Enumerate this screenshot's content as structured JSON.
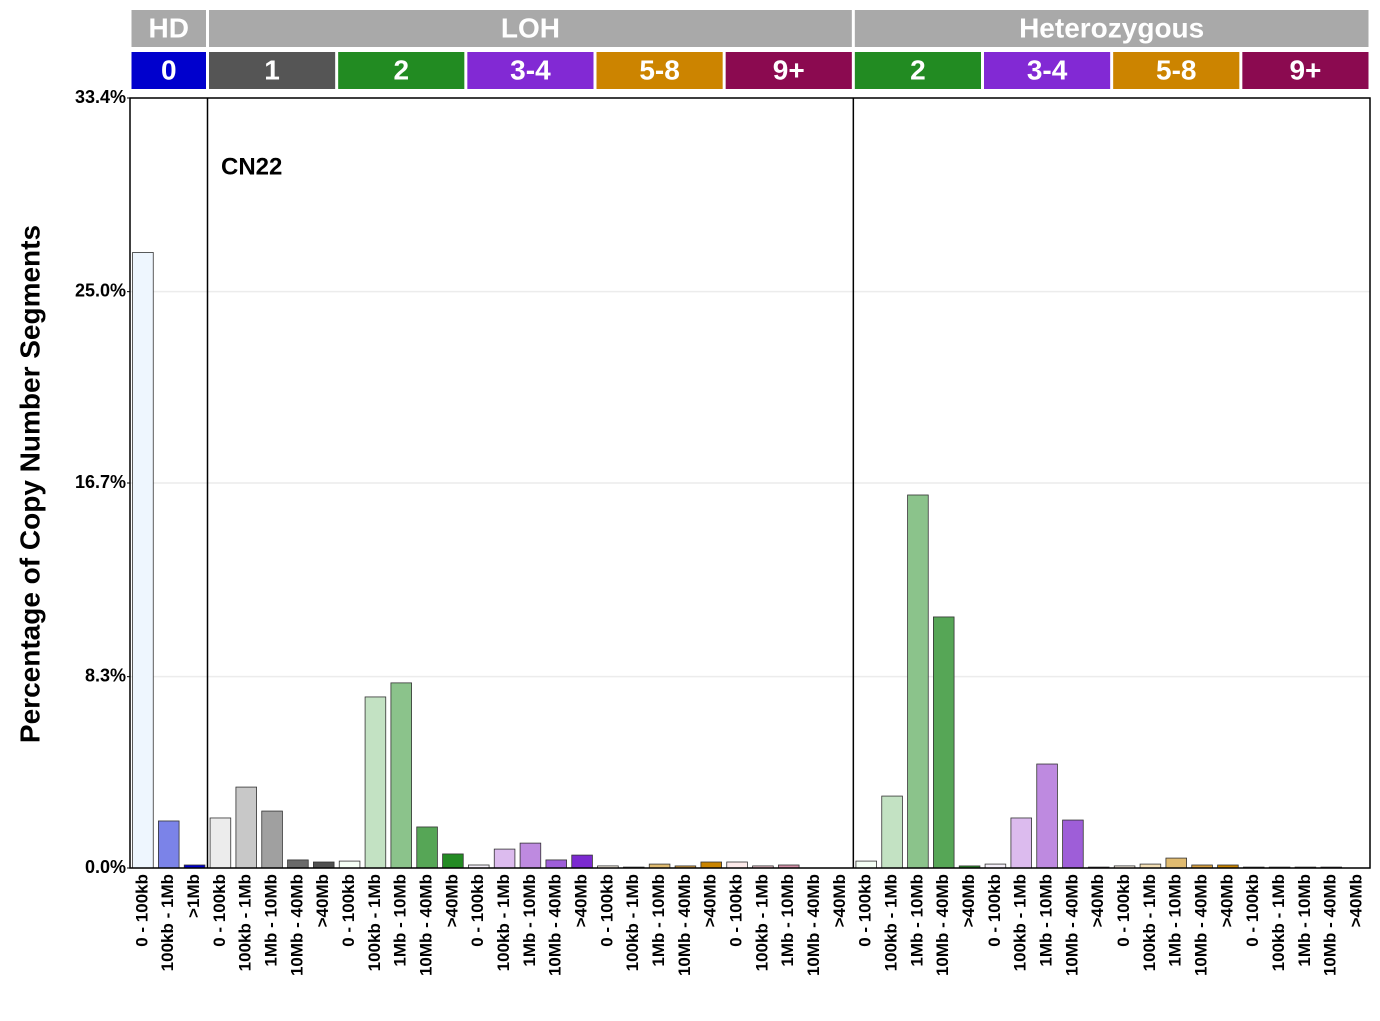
{
  "chart_data": {
    "type": "bar",
    "y_label": "Percentage of Copy Number Segments",
    "annotation": "CN22",
    "ylim": [
      0,
      33.4
    ],
    "yticks": [
      {
        "value": 0,
        "label": "0.0%"
      },
      {
        "value": 8.3,
        "label": "8.3%"
      },
      {
        "value": 16.7,
        "label": "16.7%"
      },
      {
        "value": 25,
        "label": "25.0%"
      },
      {
        "value": 33.4,
        "label": "33.4%"
      }
    ],
    "grid": true,
    "groups": [
      {
        "label": "HD",
        "classes": [
          {
            "label": "0",
            "color": "#0000cd",
            "categories": [
              "0 - 100kb",
              "100kb - 1Mb",
              ">1Mb"
            ],
            "values": [
              26.7,
              2.04,
              0.13
            ],
            "bar_colors": [
              "#eef6fe",
              "#7b83e8",
              "#0000cd"
            ]
          }
        ]
      },
      {
        "label": "LOH",
        "classes": [
          {
            "label": "1",
            "color": "#555555",
            "categories": [
              "0 - 100kb",
              "100kb - 1Mb",
              "1Mb - 10Mb",
              "10Mb - 40Mb",
              ">40Mb"
            ],
            "values": [
              2.17,
              3.51,
              2.47,
              0.35,
              0.26
            ],
            "bar_colors": [
              "#ececec",
              "#c8c8c8",
              "#a0a0a0",
              "#6a6a6a",
              "#505050"
            ]
          },
          {
            "label": "2",
            "color": "#228b22",
            "categories": [
              "0 - 100kb",
              "100kb - 1Mb",
              "1Mb - 10Mb",
              "10Mb - 40Mb",
              ">40Mb"
            ],
            "values": [
              0.3,
              7.42,
              8.03,
              1.78,
              0.61
            ],
            "bar_colors": [
              "#f5fff5",
              "#c3e2c3",
              "#8bc38b",
              "#56a656",
              "#238b23"
            ]
          },
          {
            "label": "3-4",
            "color": "#8229d4",
            "categories": [
              "0 - 100kb",
              "100kb - 1Mb",
              "1Mb - 10Mb",
              "10Mb - 40Mb",
              ">40Mb"
            ],
            "values": [
              0.13,
              0.82,
              1.08,
              0.35,
              0.56
            ],
            "bar_colors": [
              "#f5f0fa",
              "#dcbbee",
              "#be8ae0",
              "#9e5ed8",
              "#7b2ad0"
            ]
          },
          {
            "label": "5-8",
            "color": "#cc8400",
            "categories": [
              "0 - 100kb",
              "100kb - 1Mb",
              "1Mb - 10Mb",
              "10Mb - 40Mb",
              ">40Mb"
            ],
            "values": [
              0.09,
              0.04,
              0.17,
              0.09,
              0.26
            ],
            "bar_colors": [
              "#fdf5e8",
              "#f4dfb5",
              "#e0bb70",
              "#d8a040",
              "#c98400"
            ]
          },
          {
            "label": "9+",
            "color": "#8b0a50",
            "categories": [
              "0 - 100kb",
              "100kb - 1Mb",
              "1Mb - 10Mb",
              "10Mb - 40Mb",
              ">40Mb"
            ],
            "values": [
              0.26,
              0.09,
              0.13,
              0,
              0
            ],
            "bar_colors": [
              "#fdeaea",
              "#f2c6d0",
              "#d490a8",
              "#b05080",
              "#8b0a50"
            ]
          }
        ]
      },
      {
        "label": "Heterozygous",
        "classes": [
          {
            "label": "2",
            "color": "#228b22",
            "categories": [
              "0 - 100kb",
              "100kb - 1Mb",
              "1Mb - 10Mb",
              "10Mb - 40Mb",
              ">40Mb"
            ],
            "values": [
              0.3,
              3.12,
              16.18,
              10.89,
              0.09
            ],
            "bar_colors": [
              "#f5fff5",
              "#c3e2c3",
              "#8bc38b",
              "#56a656",
              "#238b23"
            ]
          },
          {
            "label": "3-4",
            "color": "#8229d4",
            "categories": [
              "0 - 100kb",
              "100kb - 1Mb",
              "1Mb - 10Mb",
              "10Mb - 40Mb",
              ">40Mb"
            ],
            "values": [
              0.17,
              2.17,
              4.51,
              2.08,
              0.04
            ],
            "bar_colors": [
              "#f5f0fa",
              "#dcbbee",
              "#be8ae0",
              "#9e5ed8",
              "#7b2ad0"
            ]
          },
          {
            "label": "5-8",
            "color": "#cc8400",
            "categories": [
              "0 - 100kb",
              "100kb - 1Mb",
              "1Mb - 10Mb",
              "10Mb - 40Mb",
              ">40Mb"
            ],
            "values": [
              0.09,
              0.17,
              0.43,
              0.13,
              0.13
            ],
            "bar_colors": [
              "#fdf5e8",
              "#f4dfb5",
              "#e0bb70",
              "#d8a040",
              "#c98400"
            ]
          },
          {
            "label": "9+",
            "color": "#8b0a50",
            "categories": [
              "0 - 100kb",
              "100kb - 1Mb",
              "1Mb - 10Mb",
              "10Mb - 40Mb",
              ">40Mb"
            ],
            "values": [
              0.04,
              0.04,
              0.04,
              0.04,
              0
            ],
            "bar_colors": [
              "#fdeaea",
              "#f2c6d0",
              "#d490a8",
              "#b05080",
              "#8b0a50"
            ]
          }
        ]
      }
    ]
  }
}
